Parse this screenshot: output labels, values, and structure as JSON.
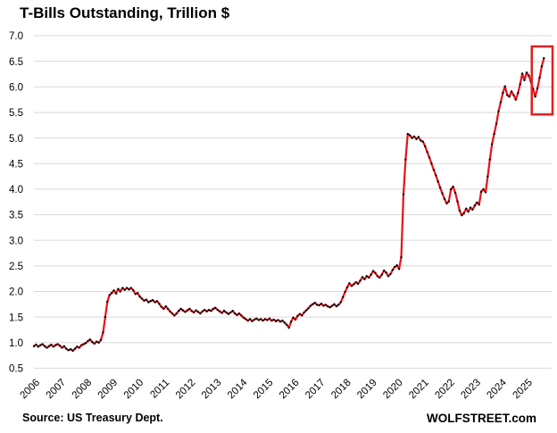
{
  "chart_data": {
    "type": "line",
    "title": "T-Bills Outstanding, Trillion $",
    "source": "Source: US Treasury Dept.",
    "branding": "WOLFSTREET.com",
    "xlabel": "",
    "ylabel": "",
    "ylim": [
      0.5,
      7.0
    ],
    "yticks": [
      7.0,
      6.5,
      6.0,
      5.5,
      5.0,
      4.5,
      4.0,
      3.5,
      3.0,
      2.5,
      2.0,
      1.5,
      1.0,
      0.5
    ],
    "xticks": [
      2006,
      2007,
      2008,
      2009,
      2010,
      2011,
      2012,
      2013,
      2014,
      2015,
      2016,
      2017,
      2018,
      2019,
      2020,
      2021,
      2022,
      2023,
      2024,
      2025
    ],
    "grid": "horizontal",
    "legend": "none",
    "line_color": "#e8121c",
    "marker_color": "#000000",
    "gridline_color": "#d9d9d9",
    "annotation_box": {
      "description": "red highlight box around the 2025 dip-and-surge at the end of the series",
      "color": "#e0201f",
      "t_start": 2025.2,
      "t_end": 2026.0,
      "v_low": 5.46,
      "v_high": 6.79
    },
    "series": {
      "name": "T-Bills Outstanding (Trillion $)",
      "start_year": 2006,
      "frequency": "monthly",
      "values": [
        0.93,
        0.96,
        0.92,
        0.95,
        0.97,
        0.93,
        0.9,
        0.93,
        0.96,
        0.92,
        0.95,
        0.97,
        0.94,
        0.9,
        0.93,
        0.88,
        0.85,
        0.87,
        0.84,
        0.88,
        0.92,
        0.9,
        0.95,
        0.97,
        0.99,
        1.03,
        1.06,
        1.01,
        0.98,
        1.02,
        1.0,
        1.05,
        1.2,
        1.5,
        1.8,
        1.93,
        1.97,
        2.02,
        1.96,
        2.05,
        2.0,
        2.07,
        2.03,
        2.07,
        2.04,
        2.07,
        2.02,
        1.95,
        1.97,
        1.9,
        1.86,
        1.82,
        1.84,
        1.79,
        1.81,
        1.83,
        1.79,
        1.81,
        1.76,
        1.7,
        1.66,
        1.71,
        1.66,
        1.61,
        1.57,
        1.53,
        1.57,
        1.62,
        1.66,
        1.63,
        1.6,
        1.63,
        1.66,
        1.62,
        1.59,
        1.63,
        1.6,
        1.57,
        1.61,
        1.64,
        1.61,
        1.64,
        1.62,
        1.66,
        1.68,
        1.64,
        1.61,
        1.58,
        1.62,
        1.59,
        1.56,
        1.59,
        1.62,
        1.57,
        1.54,
        1.57,
        1.53,
        1.49,
        1.46,
        1.43,
        1.46,
        1.42,
        1.45,
        1.47,
        1.44,
        1.46,
        1.43,
        1.46,
        1.44,
        1.47,
        1.43,
        1.45,
        1.42,
        1.44,
        1.41,
        1.43,
        1.39,
        1.35,
        1.29,
        1.41,
        1.49,
        1.45,
        1.52,
        1.56,
        1.53,
        1.59,
        1.63,
        1.67,
        1.72,
        1.75,
        1.78,
        1.74,
        1.73,
        1.76,
        1.72,
        1.74,
        1.71,
        1.69,
        1.72,
        1.75,
        1.71,
        1.74,
        1.79,
        1.89,
        1.99,
        2.08,
        2.16,
        2.11,
        2.14,
        2.18,
        2.15,
        2.21,
        2.28,
        2.24,
        2.3,
        2.27,
        2.33,
        2.4,
        2.36,
        2.3,
        2.27,
        2.33,
        2.41,
        2.37,
        2.3,
        2.34,
        2.42,
        2.48,
        2.51,
        2.44,
        2.67,
        3.9,
        4.58,
        5.08,
        5.05,
        5.0,
        5.03,
        4.98,
        5.02,
        4.95,
        4.93,
        4.84,
        4.73,
        4.62,
        4.5,
        4.38,
        4.27,
        4.15,
        4.03,
        3.92,
        3.81,
        3.72,
        3.76,
        4.0,
        4.05,
        3.93,
        3.76,
        3.58,
        3.49,
        3.53,
        3.62,
        3.56,
        3.64,
        3.6,
        3.68,
        3.74,
        3.7,
        3.95,
        4.0,
        3.94,
        4.25,
        4.58,
        4.88,
        5.08,
        5.28,
        5.52,
        5.7,
        5.88,
        6.01,
        5.84,
        5.81,
        5.91,
        5.84,
        5.75,
        5.88,
        6.05,
        6.26,
        6.13,
        6.28,
        6.22,
        6.1,
        5.96,
        5.81,
        5.97,
        6.18,
        6.4,
        6.56
      ]
    }
  }
}
